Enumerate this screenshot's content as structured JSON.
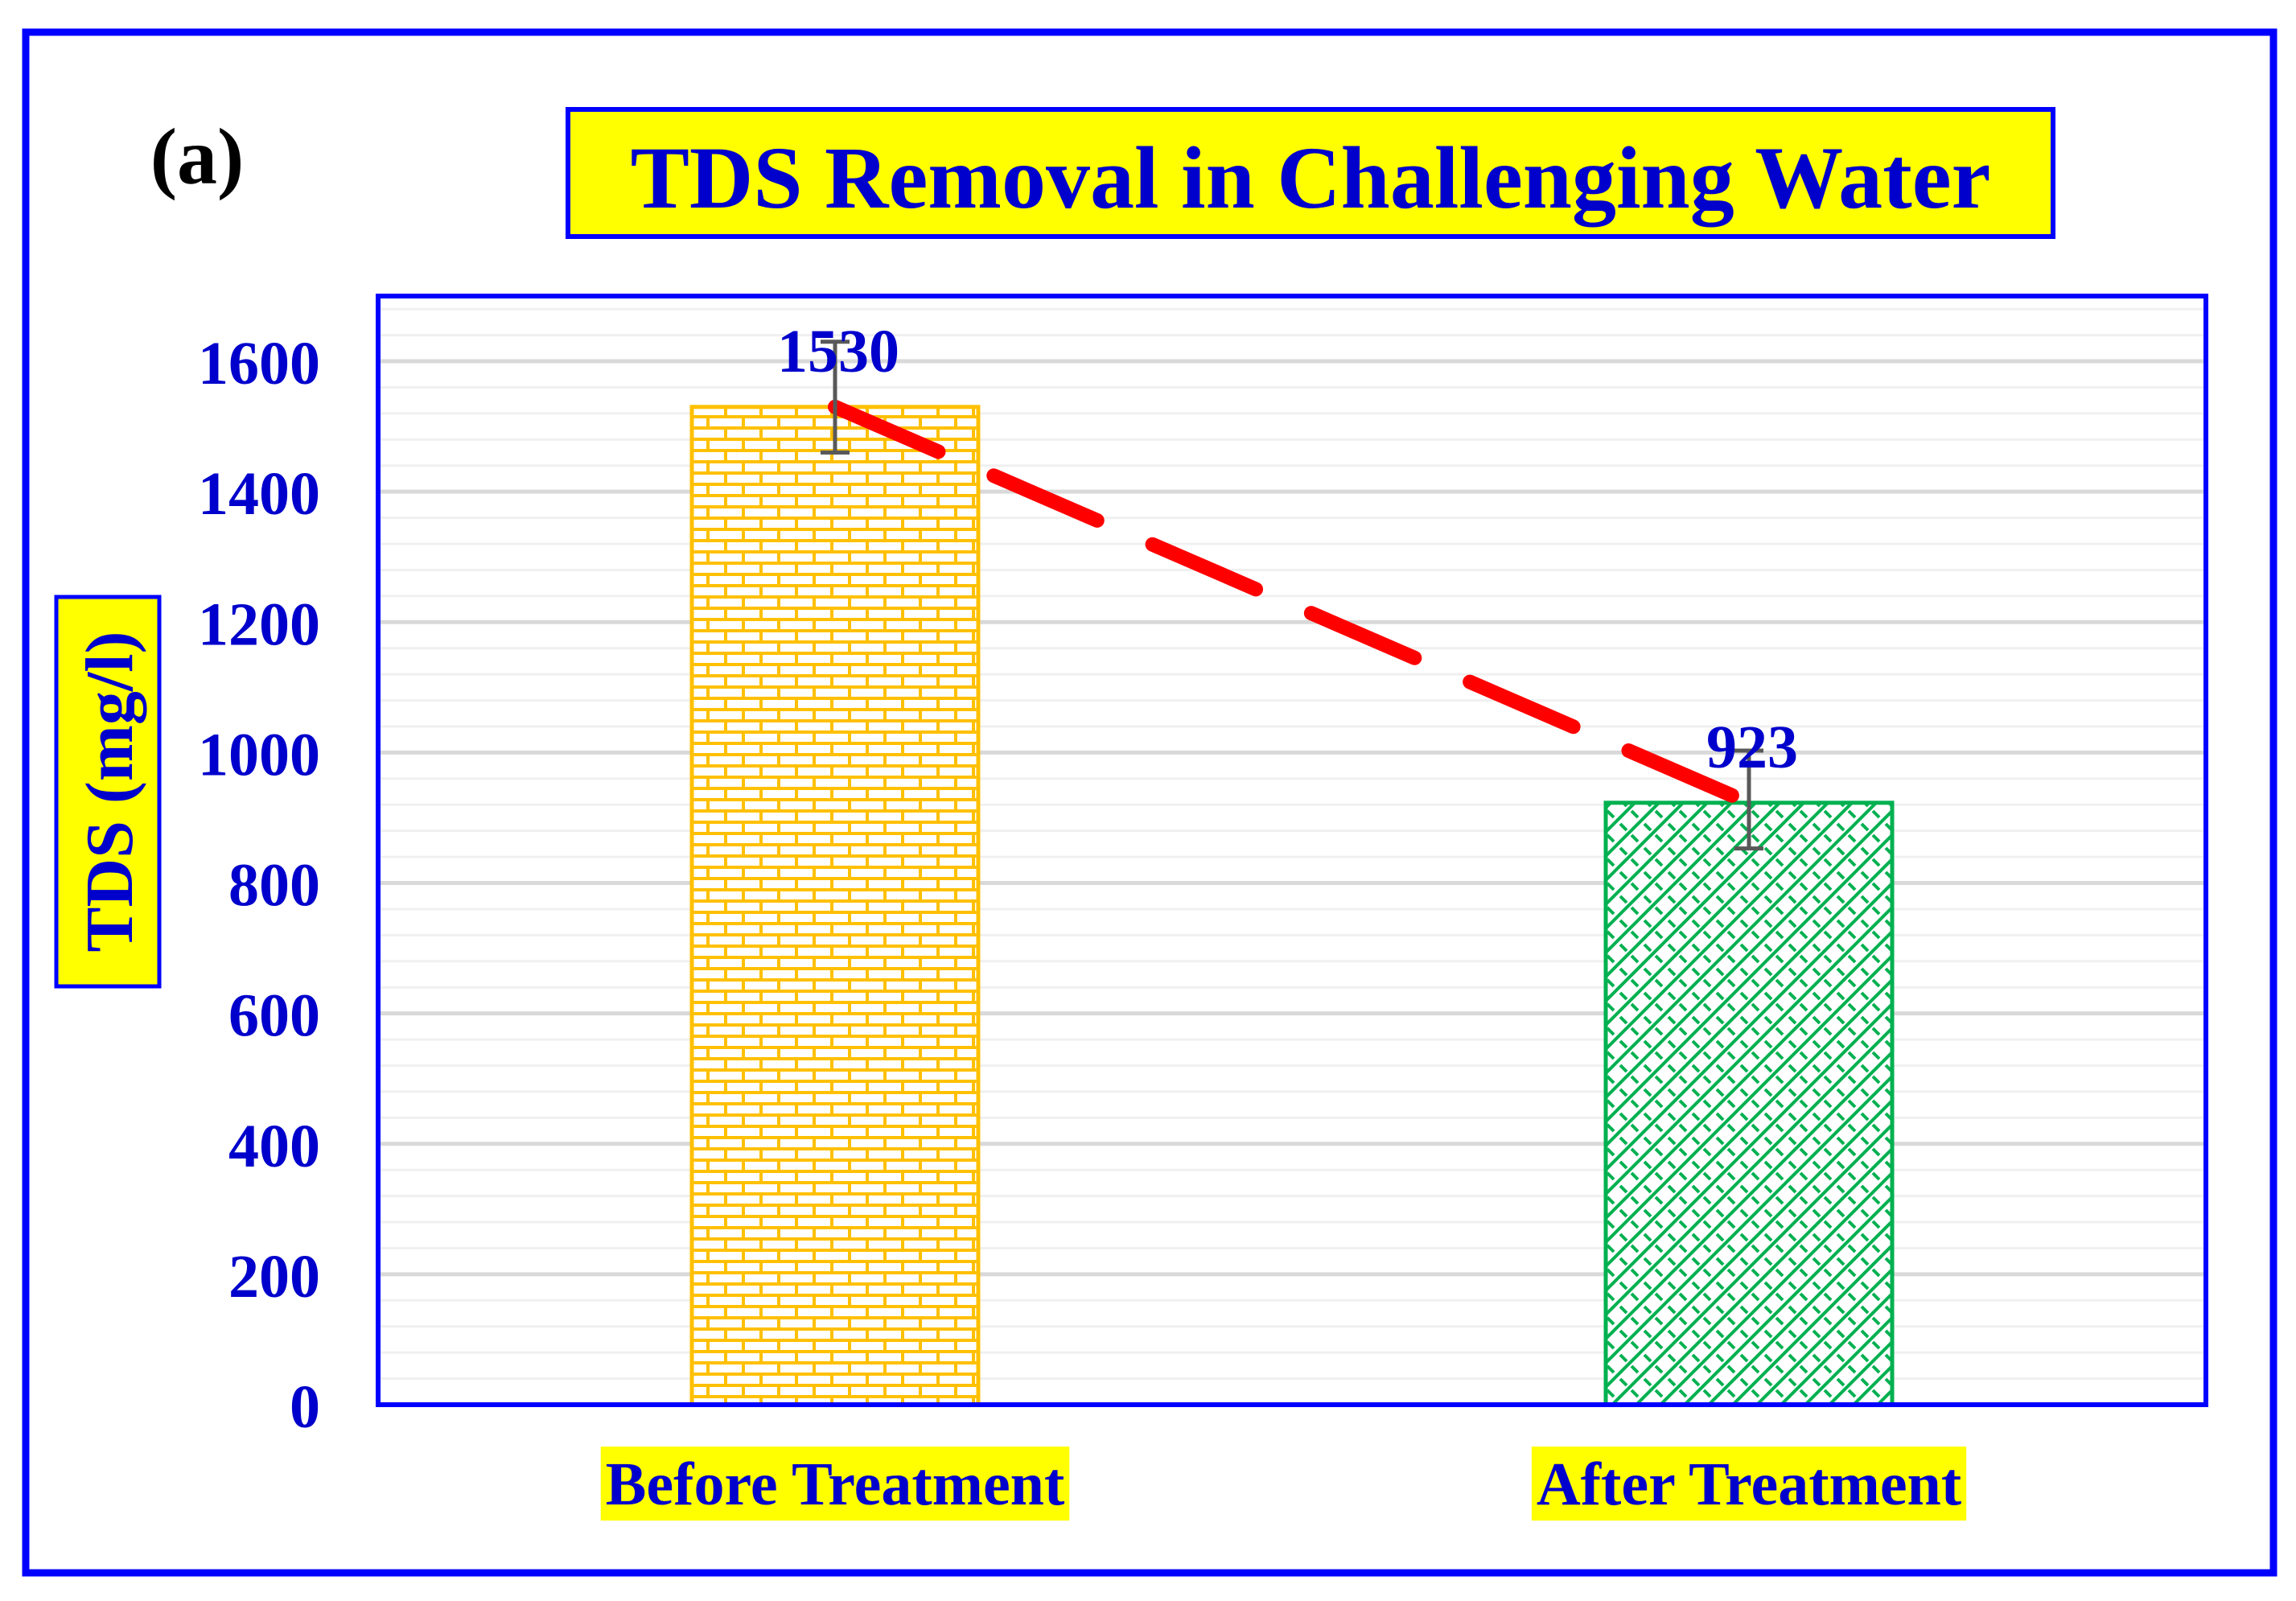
{
  "panel_label": "(a)",
  "chart_data": {
    "type": "bar",
    "title": "TDS Removal in Challenging Water",
    "ylabel": "TDS (mg/l)",
    "xlabel": "",
    "categories": [
      "Before Treatment",
      "After Treatment"
    ],
    "values": [
      1530,
      923
    ],
    "data_labels": [
      "1530",
      "923"
    ],
    "error_bars": [
      {
        "low": 1460,
        "high": 1630
      },
      {
        "low": 853,
        "high": 1003
      }
    ],
    "ylim": [
      0,
      1700
    ],
    "yticks": [
      0,
      200,
      400,
      600,
      800,
      1000,
      1200,
      1400,
      1600
    ],
    "trend_line": {
      "style": "dashed",
      "color": "#ff0000",
      "from": 1530,
      "to": 923
    },
    "grid": true,
    "legend": "none",
    "colors": {
      "frame": "#0000ff",
      "text": "#0000cc",
      "highlight": "#ffff00",
      "before_bar": "#ffc000",
      "after_bar": "#00b050",
      "error_bar": "#595959",
      "grid_major": "#d9d9d9",
      "grid_minor": "#f0f0f0"
    },
    "patterns": [
      "brick",
      "diagonal-weave"
    ]
  }
}
